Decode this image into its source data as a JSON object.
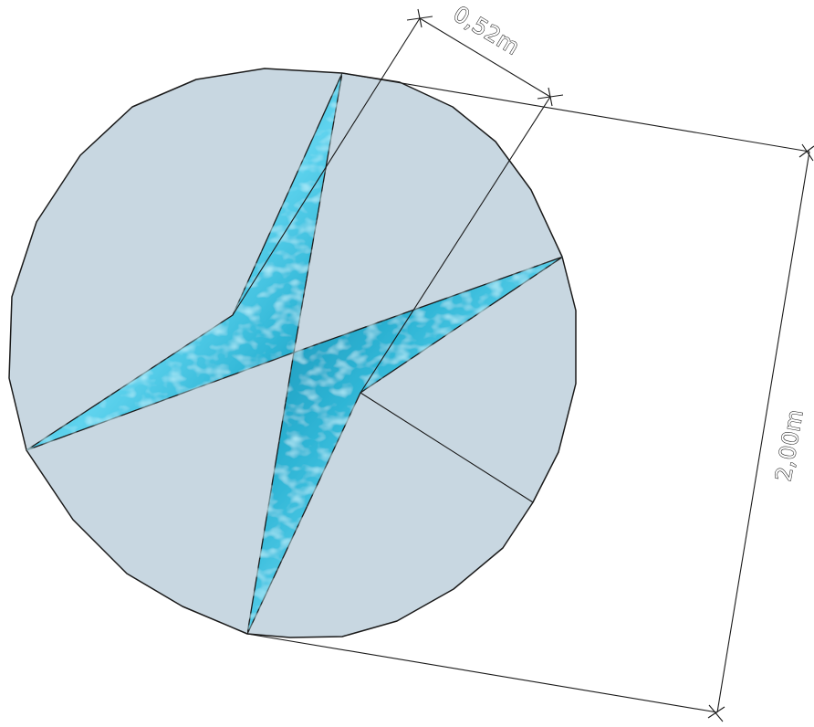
{
  "colors": {
    "disc_fill": "#c8d7e1",
    "water_light": "#5fd3ee",
    "water_mid": "#2fb6d6",
    "water_dark": "#1289ad",
    "line": "#1a1a1a"
  },
  "dimensions": {
    "width_label": "0,52m",
    "diameter_label": "2,00m"
  }
}
